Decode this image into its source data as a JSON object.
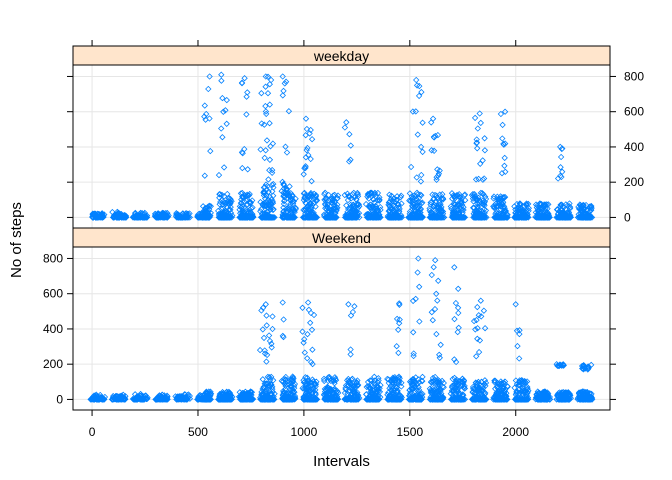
{
  "chart_data": {
    "type": "scatter",
    "xlabel": "Intervals",
    "ylabel": "No of steps",
    "xlim": [
      -90,
      2445
    ],
    "ylim": [
      -60,
      865
    ],
    "x_ticks": [
      0,
      500,
      1000,
      1500,
      2000
    ],
    "y_ticks": [
      0,
      200,
      400,
      600,
      800
    ],
    "grid": true,
    "marker": "open-diamond",
    "point_color": "#0080ff",
    "strip_color": "#ffe5cc",
    "interval_groups_hhmm": "0000-2355 in 5-minute steps",
    "panels": [
      {
        "name": "weekday",
        "peak_intervals": [
          {
            "x": 555,
            "max": 800
          },
          {
            "x": 610,
            "max": 810
          },
          {
            "x": 720,
            "max": 790
          },
          {
            "x": 820,
            "max": 800
          },
          {
            "x": 845,
            "max": 780
          },
          {
            "x": 900,
            "max": 800
          },
          {
            "x": 1010,
            "max": 560
          },
          {
            "x": 1200,
            "max": 540
          },
          {
            "x": 1530,
            "max": 780
          },
          {
            "x": 1610,
            "max": 560
          },
          {
            "x": 1830,
            "max": 590
          },
          {
            "x": 1950,
            "max": 600
          },
          {
            "x": 2210,
            "max": 400
          }
        ]
      },
      {
        "name": "Weekend",
        "peak_intervals": [
          {
            "x": 820,
            "max": 540
          },
          {
            "x": 900,
            "max": 550
          },
          {
            "x": 1020,
            "max": 550
          },
          {
            "x": 1210,
            "max": 540
          },
          {
            "x": 1450,
            "max": 545
          },
          {
            "x": 1540,
            "max": 800
          },
          {
            "x": 1620,
            "max": 790
          },
          {
            "x": 1710,
            "max": 750
          },
          {
            "x": 1835,
            "max": 560
          },
          {
            "x": 2000,
            "max": 540
          },
          {
            "x": 2200,
            "max": 190
          },
          {
            "x": 2340,
            "max": 170
          }
        ]
      }
    ]
  }
}
